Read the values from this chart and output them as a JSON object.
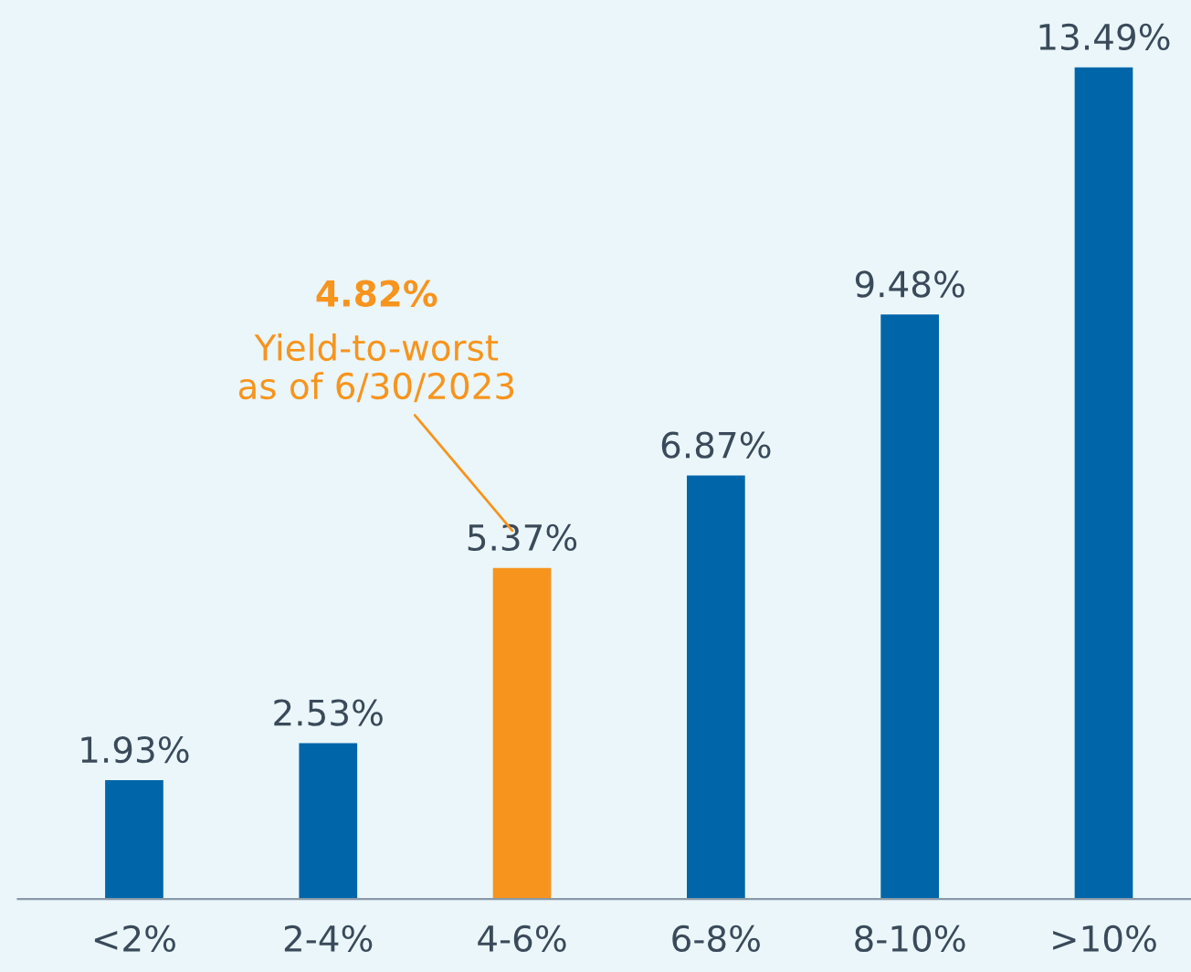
{
  "chart_data": {
    "type": "bar",
    "categories": [
      "<2%",
      "2-4%",
      "4-6%",
      "6-8%",
      "8-10%",
      ">10%"
    ],
    "values": [
      1.93,
      2.53,
      5.37,
      6.87,
      9.48,
      13.49
    ],
    "value_labels": [
      "1.93%",
      "2.53%",
      "5.37%",
      "6.87%",
      "9.48%",
      "13.49%"
    ],
    "colors": [
      "#0065a9",
      "#0065a9",
      "#f7941d",
      "#0065a9",
      "#0065a9",
      "#0065a9"
    ],
    "annotations": [
      "4.82%",
      "Yield-to-worst\nas of 6/30/2023"
    ],
    "grid": false,
    "legend": false
  }
}
